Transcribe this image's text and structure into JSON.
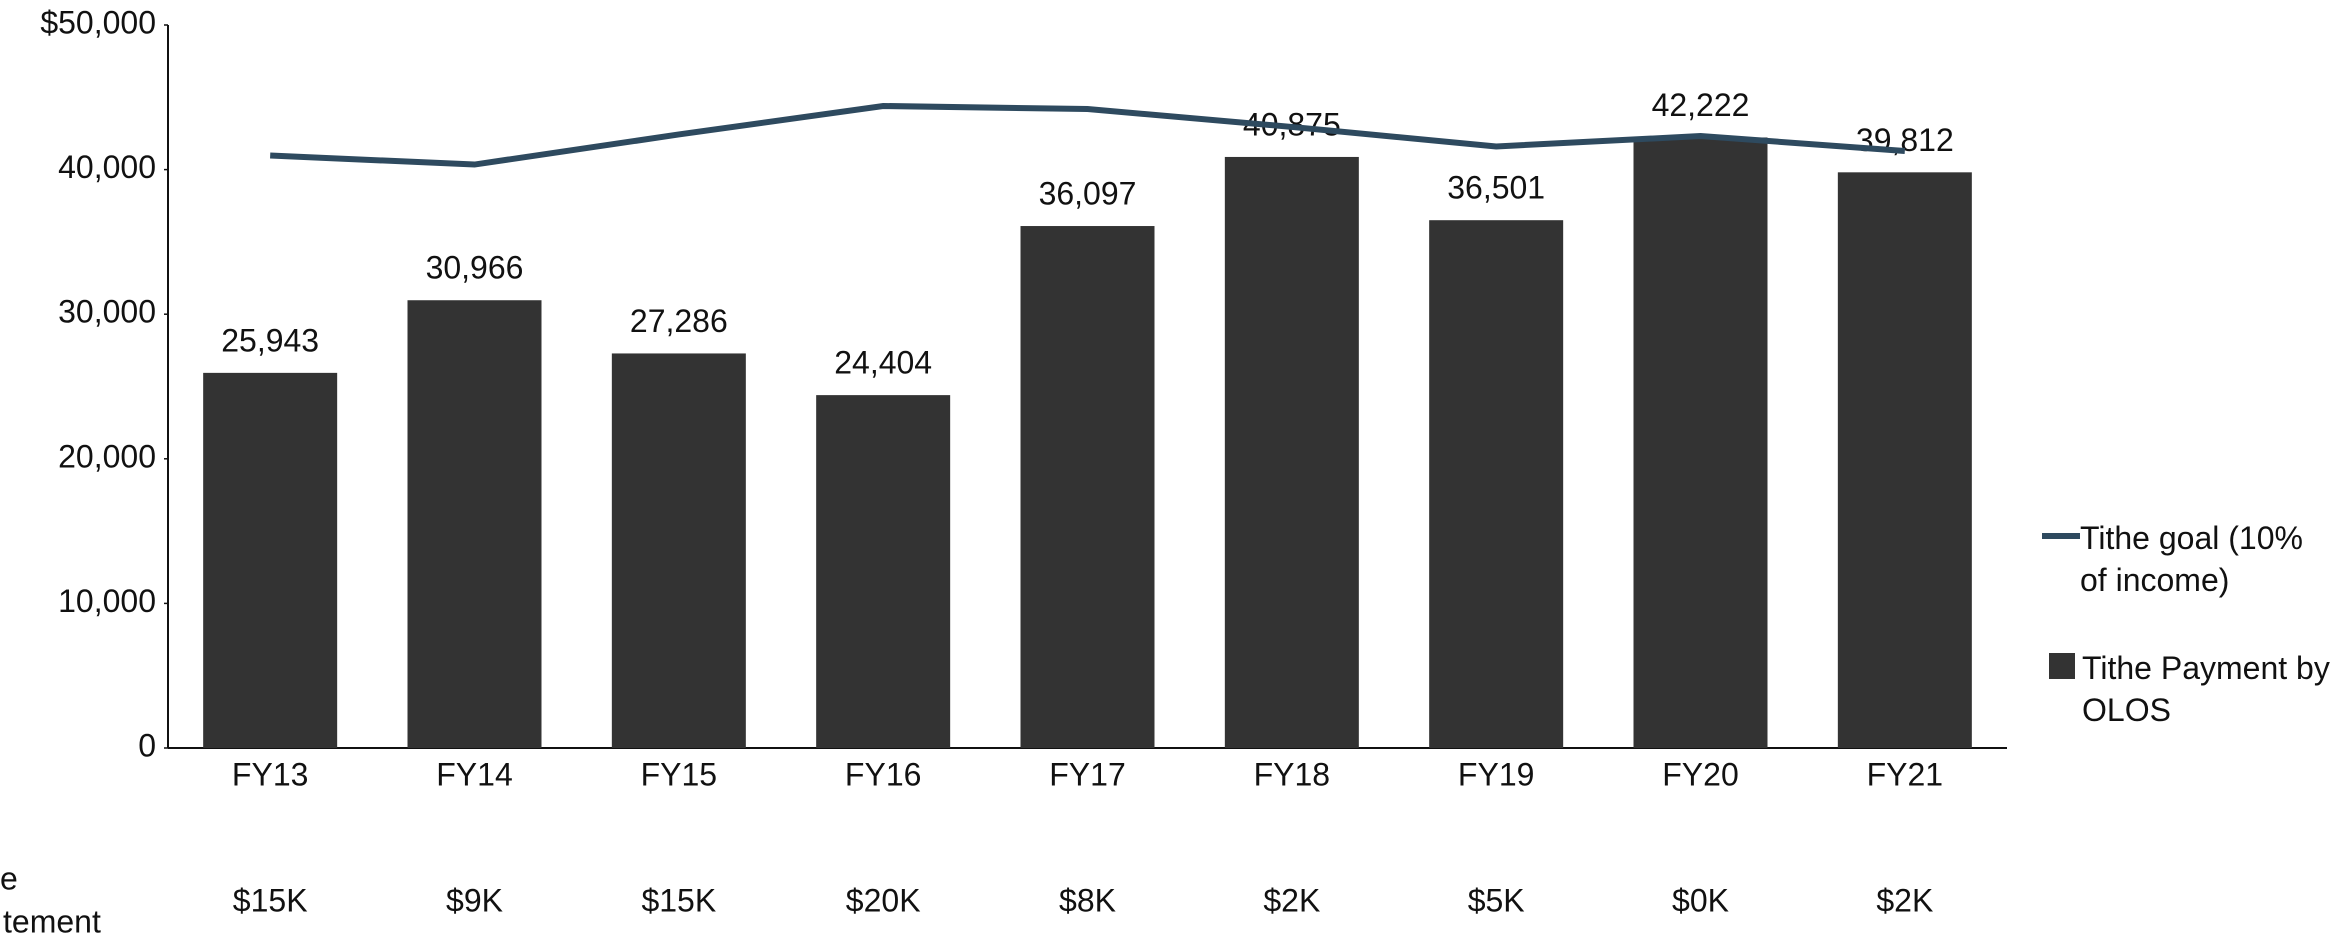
{
  "chart_data": {
    "type": "bar_line",
    "categories": [
      "FY13",
      "FY14",
      "FY15",
      "FY16",
      "FY17",
      "FY18",
      "FY19",
      "FY20",
      "FY21"
    ],
    "series": [
      {
        "name": "Tithe goal (10% of income)",
        "type": "line",
        "color": "#2e4a5f",
        "values": [
          40975,
          40350,
          42430,
          44400,
          44190,
          42950,
          41600,
          42320,
          41290
        ]
      },
      {
        "name": "Tithe Payment by OLOS",
        "type": "bar",
        "color": "#333333",
        "values": [
          25943,
          30966,
          27286,
          24404,
          36097,
          40875,
          36501,
          42222,
          39812
        ],
        "value_labels": [
          "25,943",
          "30,966",
          "27,286",
          "24,404",
          "36,097",
          "40,875",
          "36,501",
          "42,222",
          "39,812"
        ]
      }
    ],
    "ylim": [
      0,
      50000
    ],
    "yticks": [
      0,
      {
        "value": 10000,
        "label": "10,000"
      },
      {
        "value": 20000,
        "label": "20,000"
      },
      {
        "value": 30000,
        "label": "30,000"
      },
      {
        "value": 40000,
        "label": "40,000"
      },
      {
        "value": 50000,
        "label": "$50,000"
      }
    ],
    "legend": "right",
    "bottom_row": {
      "label": [
        "e",
        "tement"
      ],
      "values": [
        "$15K",
        "$9K",
        "$15K",
        "$20K",
        "$8K",
        "$2K",
        "$5K",
        "$0K",
        "$2K"
      ]
    }
  }
}
